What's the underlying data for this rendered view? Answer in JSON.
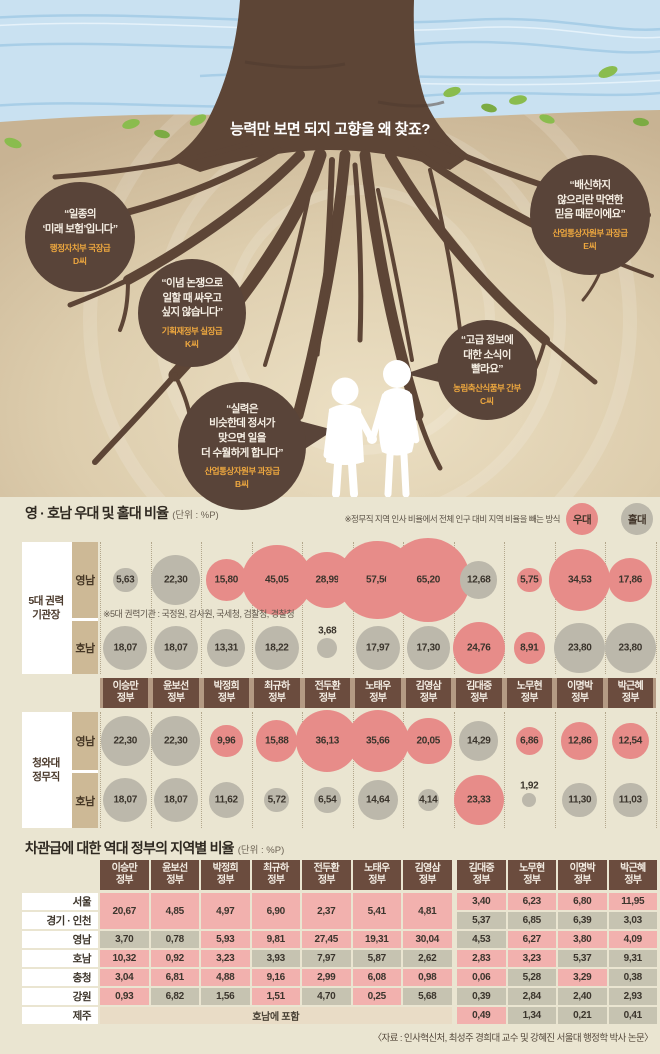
{
  "colors": {
    "favor_red": "#e78c89",
    "slight_gray": "#bcb8ab",
    "cell_pink": "#f2b1ae",
    "cell_gray": "#c6c3b1",
    "band_brown": "#6b4c3e",
    "accent_orange": "#eda73f",
    "bubble_brown": "#594439"
  },
  "illustration": {
    "caption": "능력만 보면 되지 고향을 왜 찾죠?",
    "speech_bubbles": [
      {
        "quote": "“일종의\n‘미래 보험’입니다”",
        "org": "행정자치부 국장급",
        "person": "D씨"
      },
      {
        "quote": "“이념 논쟁으로\n일할 때 싸우고\n싶지 않습니다”",
        "org": "기획재정부 실장급",
        "person": "K씨"
      },
      {
        "quote": "“실력은\n비슷한데 정서가\n맞으면 일을\n더 수월하게 합니다”",
        "org": "산업통상자원부 과장급",
        "person": "B씨"
      },
      {
        "quote": "“고급 정보에\n대한 소식이\n빨라요”",
        "org": "농림축산식품부 간부",
        "person": "C씨"
      },
      {
        "quote": "“배신하지\n않으리란 막연한\n믿음 때문이에요”",
        "org": "산업통상자원부 과장급",
        "person": "E씨"
      }
    ]
  },
  "chart_data": [
    {
      "type": "bubble",
      "title": "영 · 호남 우대 및 홀대 비율",
      "unit_label": "(단위 : %P)",
      "method_note": "※정무직 지역 인사 비율에서 전체 인구 대비 지역 비율을 빼는 방식",
      "legend": [
        {
          "label": "우대",
          "key": "favor"
        },
        {
          "label": "홀대",
          "key": "slight"
        }
      ],
      "categories": [
        "이승만",
        "윤보선",
        "박정희",
        "최규하",
        "전두환",
        "노태우",
        "김영삼",
        "김대중",
        "노무현",
        "이명박",
        "박근혜"
      ],
      "category_suffix": "정부",
      "groups": [
        {
          "label": "5대 권력\n기관장",
          "note": "※5대 권력기관 : 국정원, 감사원, 국세청, 검찰청, 경찰청",
          "rows": [
            {
              "label": "영남",
              "values": [
                5.63,
                22.3,
                15.8,
                45.05,
                28.99,
                57.56,
                65.2,
                12.68,
                5.75,
                34.53,
                17.86
              ],
              "status": [
                "홀대",
                "홀대",
                "우대",
                "우대",
                "우대",
                "우대",
                "우대",
                "홀대",
                "우대",
                "우대",
                "우대"
              ]
            },
            {
              "label": "호남",
              "values": [
                18.07,
                18.07,
                13.31,
                18.22,
                3.68,
                17.97,
                17.3,
                24.76,
                8.91,
                23.8,
                23.8
              ],
              "status": [
                "홀대",
                "홀대",
                "홀대",
                "홀대",
                "홀대",
                "홀대",
                "홀대",
                "우대",
                "우대",
                "홀대",
                "홀대"
              ]
            }
          ]
        },
        {
          "label": "청와대\n정무직",
          "note": "",
          "rows": [
            {
              "label": "영남",
              "values": [
                22.3,
                22.3,
                9.96,
                15.88,
                36.13,
                35.66,
                20.05,
                14.29,
                6.86,
                12.86,
                12.54
              ],
              "status": [
                "홀대",
                "홀대",
                "우대",
                "우대",
                "우대",
                "우대",
                "우대",
                "홀대",
                "우대",
                "우대",
                "우대"
              ]
            },
            {
              "label": "호남",
              "values": [
                18.07,
                18.07,
                11.62,
                5.72,
                6.54,
                14.64,
                4.14,
                23.33,
                1.92,
                11.3,
                11.03
              ],
              "status": [
                "홀대",
                "홀대",
                "홀대",
                "홀대",
                "홀대",
                "홀대",
                "홀대",
                "우대",
                "홀대",
                "홀대",
                "홀대"
              ]
            }
          ]
        }
      ]
    },
    {
      "type": "table",
      "title": "차관급에 대한 역대 정부의 지역별 비율",
      "unit_label": "(단위 : %P)",
      "columns": [
        "이승만",
        "윤보선",
        "박정희",
        "최규하",
        "전두환",
        "노태우",
        "김영삼",
        "김대중",
        "노무현",
        "이명박",
        "박근혜"
      ],
      "column_suffix": "정부",
      "capital_rows": {
        "labels": [
          "서울",
          "경기 · 인천"
        ],
        "shared_cells": {
          "values": [
            20.67,
            4.85,
            4.97,
            6.9,
            2.37,
            5.41,
            4.81
          ],
          "types": [
            "p",
            "p",
            "p",
            "p",
            "p",
            "p",
            "p"
          ]
        },
        "seoul_cells": {
          "values": [
            3.4,
            6.23,
            6.8,
            11.95
          ],
          "types": [
            "p",
            "p",
            "p",
            "p"
          ]
        },
        "gyeonggi_cells": {
          "values": [
            5.37,
            6.85,
            6.39,
            3.03
          ],
          "types": [
            "g",
            "g",
            "g",
            "g"
          ]
        }
      },
      "region_rows": [
        {
          "label": "영남",
          "values": [
            3.7,
            0.78,
            5.93,
            9.81,
            27.45,
            19.31,
            30.04,
            4.53,
            6.27,
            3.8,
            4.09
          ],
          "types": [
            "g",
            "g",
            "p",
            "p",
            "p",
            "p",
            "p",
            "g",
            "p",
            "p",
            "p"
          ]
        },
        {
          "label": "호남",
          "values": [
            10.32,
            0.92,
            3.23,
            3.93,
            7.97,
            5.87,
            2.62,
            2.83,
            3.23,
            5.37,
            9.31
          ],
          "types": [
            "p",
            "p",
            "p",
            "g",
            "g",
            "g",
            "g",
            "p",
            "p",
            "g",
            "g"
          ]
        },
        {
          "label": "충청",
          "values": [
            3.04,
            6.81,
            4.88,
            9.16,
            2.99,
            6.08,
            0.98,
            0.06,
            5.28,
            3.29,
            0.38
          ],
          "types": [
            "p",
            "p",
            "p",
            "p",
            "p",
            "p",
            "p",
            "p",
            "g",
            "p",
            "g"
          ]
        },
        {
          "label": "강원",
          "values": [
            0.93,
            6.82,
            1.56,
            1.51,
            4.7,
            0.25,
            5.68,
            0.39,
            2.84,
            2.4,
            2.93
          ],
          "types": [
            "p",
            "g",
            "g",
            "p",
            "g",
            "p",
            "g",
            "g",
            "g",
            "g",
            "g"
          ]
        }
      ],
      "jeju_row": {
        "label": "제주",
        "merged_note": "호남에 포함",
        "values": [
          0.49,
          1.34,
          0.21,
          0.41
        ],
        "types": [
          "p",
          "g",
          "g",
          "g"
        ]
      },
      "source": "〈자료 : 인사혁신처, 최성주 경희대 교수 및 강혜진 서울대 행정학 박사 논문〉"
    }
  ]
}
